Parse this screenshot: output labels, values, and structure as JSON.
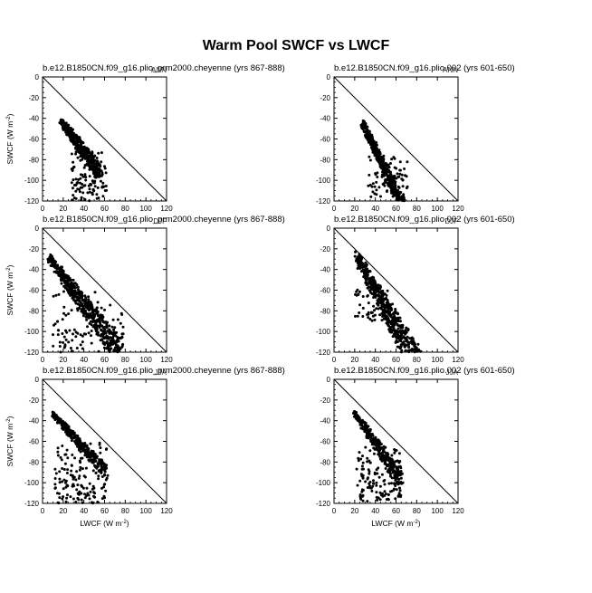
{
  "figure": {
    "title": "Warm Pool SWCF vs LWCF"
  },
  "chart_data": [
    {
      "type": "scatter",
      "title": "b.e12.B1850CN.f09_g16.plio_prm2000.cheyenne (yrs 867-888)",
      "season": "ANN",
      "xlabel": "",
      "ylabel": "SWCF (W m-2)",
      "xlim": [
        0,
        120
      ],
      "ylim": [
        -120,
        0
      ],
      "xticks": [
        0,
        20,
        40,
        60,
        80,
        100,
        120
      ],
      "yticks": [
        0,
        -20,
        -40,
        -60,
        -80,
        -100,
        -120
      ],
      "reference_line": [
        [
          0,
          0
        ],
        [
          120,
          -120
        ]
      ],
      "cloud": {
        "x_start": [
          18,
          -40
        ],
        "x_end": [
          55,
          -82
        ],
        "top_slope": -0.75,
        "spread": 14,
        "n": 420
      },
      "tail": {
        "x_range": [
          28,
          62
        ],
        "y_range": [
          -72,
          -120
        ],
        "n": 110
      }
    },
    {
      "type": "scatter",
      "title": "b.e12.B1850CN.f09_g16.plio.002 (yrs 601-650)",
      "season": "ANN",
      "xlabel": "",
      "ylabel": "",
      "xlim": [
        0,
        120
      ],
      "ylim": [
        -120,
        0
      ],
      "xticks": [
        0,
        20,
        40,
        60,
        80,
        100,
        120
      ],
      "yticks": [
        0,
        -20,
        -40,
        -60,
        -80,
        -100,
        -120
      ],
      "reference_line": [
        [
          0,
          0
        ],
        [
          120,
          -120
        ]
      ],
      "cloud": {
        "x_start": [
          28,
          -42
        ],
        "x_end": [
          68,
          -118
        ],
        "top_slope": -0.9,
        "spread": 16,
        "n": 460
      },
      "tail": {
        "x_range": [
          32,
          72
        ],
        "y_range": [
          -75,
          -118
        ],
        "n": 70
      }
    },
    {
      "type": "scatter",
      "title": "b.e12.B1850CN.f09_g16.plio_prm2000.cheyenne (yrs 867-888)",
      "season": "DJF",
      "xlabel": "",
      "ylabel": "SWCF (W m-2)",
      "xlim": [
        0,
        120
      ],
      "ylim": [
        -120,
        0
      ],
      "xticks": [
        0,
        20,
        40,
        60,
        80,
        100,
        120
      ],
      "yticks": [
        0,
        -20,
        -40,
        -60,
        -80,
        -100,
        -120
      ],
      "reference_line": [
        [
          0,
          0
        ],
        [
          120,
          -120
        ]
      ],
      "cloud": {
        "x_start": [
          6,
          -24
        ],
        "x_end": [
          78,
          -110
        ],
        "top_slope": -1.0,
        "spread": 22,
        "n": 560
      },
      "tail": {
        "x_range": [
          10,
          80
        ],
        "y_range": [
          -60,
          -120
        ],
        "n": 120
      }
    },
    {
      "type": "scatter",
      "title": "b.e12.B1850CN.f09_g16.plio.002 (yrs 601-650)",
      "season": "DJF",
      "xlabel": "",
      "ylabel": "",
      "xlim": [
        0,
        120
      ],
      "ylim": [
        -120,
        0
      ],
      "xticks": [
        0,
        20,
        40,
        60,
        80,
        100,
        120
      ],
      "yticks": [
        0,
        -20,
        -40,
        -60,
        -80,
        -100,
        -120
      ],
      "reference_line": [
        [
          0,
          0
        ],
        [
          120,
          -120
        ]
      ],
      "cloud": {
        "x_start": [
          22,
          -22
        ],
        "x_end": [
          84,
          -118
        ],
        "top_slope": -1.25,
        "spread": 30,
        "n": 620
      },
      "tail": {
        "x_range": [
          20,
          60
        ],
        "y_range": [
          -55,
          -90
        ],
        "n": 60
      }
    },
    {
      "type": "scatter",
      "title": "b.e12.B1850CN.f09_g16.plio_prm2000.cheyenne (yrs 867-888)",
      "season": "JJA",
      "xlabel": "LWCF (W m-2)",
      "ylabel": "SWCF (W m-2)",
      "xlim": [
        0,
        120
      ],
      "ylim": [
        -120,
        0
      ],
      "xticks": [
        0,
        20,
        40,
        60,
        80,
        100,
        120
      ],
      "yticks": [
        0,
        -20,
        -40,
        -60,
        -80,
        -100,
        -120
      ],
      "reference_line": [
        [
          0,
          0
        ],
        [
          120,
          -120
        ]
      ],
      "cloud": {
        "x_start": [
          10,
          -30
        ],
        "x_end": [
          62,
          -82
        ],
        "top_slope": -1.0,
        "spread": 12,
        "n": 320
      },
      "tail": {
        "x_range": [
          12,
          62
        ],
        "y_range": [
          -60,
          -120
        ],
        "n": 150
      }
    },
    {
      "type": "scatter",
      "title": "b.e12.B1850CN.f09_g16.plio.002 (yrs 601-650)",
      "season": "JJA",
      "xlabel": "LWCF (W m-2)",
      "ylabel": "",
      "xlim": [
        0,
        120
      ],
      "ylim": [
        -120,
        0
      ],
      "xticks": [
        0,
        20,
        40,
        60,
        80,
        100,
        120
      ],
      "yticks": [
        0,
        -20,
        -40,
        -60,
        -80,
        -100,
        -120
      ],
      "reference_line": [
        [
          0,
          0
        ],
        [
          120,
          -120
        ]
      ],
      "cloud": {
        "x_start": [
          20,
          -30
        ],
        "x_end": [
          65,
          -88
        ],
        "top_slope": -1.0,
        "spread": 14,
        "n": 330
      },
      "tail": {
        "x_range": [
          22,
          65
        ],
        "y_range": [
          -65,
          -118
        ],
        "n": 140
      }
    }
  ]
}
